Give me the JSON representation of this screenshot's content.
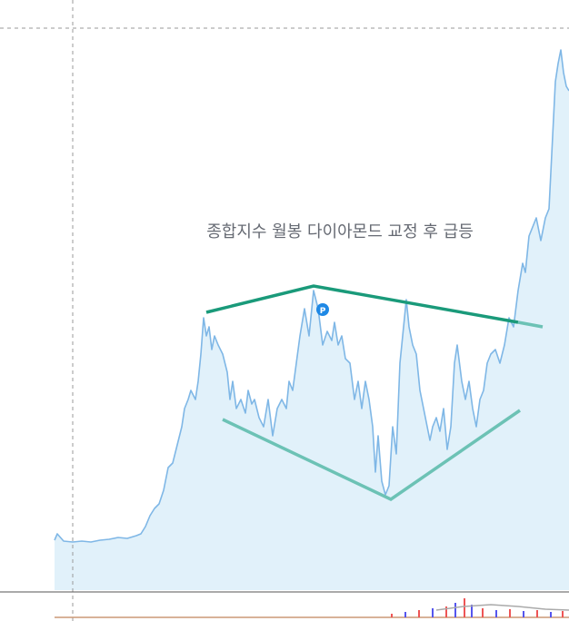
{
  "annotation": "종합지수 월봉 다이아몬드 교정 후 급등",
  "marker": "P"
}
